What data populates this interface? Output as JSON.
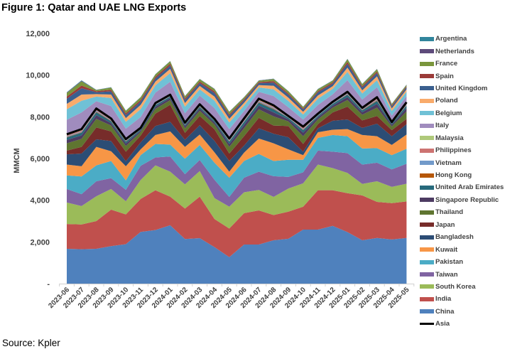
{
  "title": "Figure 1: Qatar and UAE LNG Exports",
  "source": "Source: Kpler",
  "chart_data": {
    "type": "area",
    "stacked": true,
    "title": "Figure 1: Qatar and UAE LNG Exports",
    "ylabel": "MMCM",
    "xlabel": "",
    "ylim": [
      0,
      12000
    ],
    "yticks": [
      0,
      2000,
      4000,
      6000,
      8000,
      10000,
      12000
    ],
    "ytick_labels": [
      "-",
      "2,000",
      "4,000",
      "6,000",
      "8,000",
      "10,000",
      "12,000"
    ],
    "grid": false,
    "legend_position": "right",
    "categories": [
      "2023-06",
      "2023-07",
      "2023-08",
      "2023-09",
      "2023-10",
      "2023-11",
      "2023-12",
      "2024-01",
      "2024-02",
      "2024-03",
      "2024-04",
      "2024-05",
      "2024-06",
      "2024-07",
      "2024-08",
      "2024-09",
      "2024-10",
      "2024-11",
      "2024-12",
      "2025-01",
      "2025-02",
      "2025-03",
      "2025-04",
      "2025-05"
    ],
    "series": [
      {
        "name": "China",
        "color": "#4F81BD",
        "values": [
          1670,
          1650,
          1670,
          1800,
          1890,
          2480,
          2570,
          2800,
          2140,
          2180,
          1750,
          1270,
          1875,
          1875,
          2080,
          2150,
          2590,
          2590,
          2770,
          2470,
          2080,
          2190,
          2120,
          2190
        ]
      },
      {
        "name": "India",
        "color": "#C0504D",
        "values": [
          1190,
          1190,
          1330,
          1750,
          1430,
          1580,
          1910,
          1370,
          1460,
          1990,
          1350,
          1370,
          1505,
          1635,
          1210,
          1300,
          1100,
          1890,
          1710,
          1870,
          2150,
          1730,
          1740,
          1750
        ]
      },
      {
        "name": "South Korea",
        "color": "#9BBB59",
        "values": [
          1030,
          880,
          1190,
          990,
          630,
          910,
          1190,
          1200,
          1160,
          1230,
          1000,
          1050,
          1000,
          980,
          870,
          1110,
          1120,
          1230,
          1060,
          970,
          550,
          990,
          780,
          850
        ]
      },
      {
        "name": "Taiwan",
        "color": "#8064A2",
        "values": [
          650,
          570,
          720,
          520,
          550,
          680,
          380,
          730,
          490,
          530,
          880,
          470,
          700,
          880,
          990,
          560,
          530,
          670,
          790,
          950,
          930,
          890,
          840,
          960
        ]
      },
      {
        "name": "Pakistan",
        "color": "#4BACC6",
        "values": [
          650,
          850,
          760,
          820,
          450,
          510,
          650,
          570,
          740,
          720,
          820,
          920,
          800,
          850,
          730,
          820,
          600,
          610,
          800,
          810,
          770,
          700,
          680,
          720
        ]
      },
      {
        "name": "Kuwait",
        "color": "#F79646",
        "values": [
          520,
          490,
          890,
          470,
          680,
          280,
          430,
          630,
          570,
          500,
          500,
          290,
          400,
          740,
          850,
          500,
          220,
          270,
          250,
          340,
          650,
          570,
          490,
          680
        ]
      },
      {
        "name": "Bangladesh",
        "color": "#2C4D75",
        "values": [
          490,
          610,
          360,
          490,
          240,
          330,
          430,
          460,
          340,
          450,
          550,
          510,
          340,
          490,
          460,
          580,
          170,
          190,
          430,
          460,
          340,
          600,
          420,
          500
        ]
      },
      {
        "name": "Japan",
        "color": "#772C2A",
        "values": [
          180,
          320,
          570,
          460,
          460,
          330,
          590,
          820,
          330,
          440,
          550,
          360,
          450,
          500,
          390,
          540,
          370,
          200,
          400,
          620,
          360,
          370,
          290,
          250
        ]
      },
      {
        "name": "Thailand",
        "color": "#5F7530",
        "values": [
          350,
          380,
          410,
          280,
          270,
          170,
          230,
          220,
          220,
          250,
          230,
          320,
          380,
          410,
          440,
          220,
          370,
          230,
          230,
          320,
          270,
          400,
          180,
          360
        ]
      },
      {
        "name": "Singapore Republic",
        "color": "#4D3B62",
        "values": [
          160,
          170,
          180,
          120,
          120,
          70,
          100,
          100,
          100,
          110,
          100,
          140,
          170,
          180,
          190,
          100,
          170,
          100,
          100,
          140,
          120,
          180,
          80,
          160
        ]
      },
      {
        "name": "United Arab Emirates",
        "color": "#276A7C",
        "values": [
          120,
          130,
          140,
          90,
          90,
          60,
          80,
          70,
          70,
          80,
          80,
          110,
          130,
          140,
          150,
          70,
          120,
          70,
          80,
          110,
          90,
          140,
          60,
          120
        ]
      },
      {
        "name": "Hong Kong",
        "color": "#B65708",
        "values": [
          20,
          20,
          30,
          20,
          20,
          10,
          10,
          10,
          10,
          20,
          10,
          20,
          20,
          30,
          30,
          10,
          20,
          10,
          10,
          20,
          20,
          30,
          10,
          20
        ]
      },
      {
        "name": "Vietnam",
        "color": "#729ACA",
        "values": [
          40,
          40,
          50,
          30,
          30,
          20,
          30,
          20,
          30,
          30,
          20,
          40,
          40,
          50,
          50,
          20,
          40,
          30,
          30,
          40,
          30,
          40,
          20,
          40
        ]
      },
      {
        "name": "Philippines",
        "color": "#CD7371",
        "values": [
          40,
          50,
          40,
          40,
          30,
          20,
          30,
          30,
          30,
          30,
          30,
          40,
          50,
          40,
          50,
          30,
          50,
          30,
          30,
          40,
          30,
          50,
          20,
          40
        ]
      },
      {
        "name": "Malaysia",
        "color": "#AFC97A",
        "values": [
          50,
          60,
          60,
          40,
          40,
          20,
          30,
          30,
          30,
          40,
          30,
          50,
          60,
          70,
          60,
          30,
          60,
          30,
          30,
          40,
          40,
          60,
          20,
          60
        ]
      },
      {
        "name": "Italy",
        "color": "#A08CBE",
        "values": [
          700,
          800,
          350,
          600,
          500,
          520,
          500,
          620,
          450,
          420,
          520,
          450,
          360,
          330,
          450,
          420,
          340,
          420,
          360,
          560,
          400,
          480,
          310,
          300
        ]
      },
      {
        "name": "Belgium",
        "color": "#70C1D6",
        "values": [
          500,
          560,
          220,
          380,
          330,
          380,
          350,
          420,
          320,
          300,
          360,
          320,
          260,
          210,
          320,
          300,
          240,
          300,
          260,
          400,
          290,
          340,
          220,
          210
        ]
      },
      {
        "name": "Poland",
        "color": "#F9AB6B",
        "values": [
          260,
          300,
          120,
          170,
          180,
          200,
          180,
          200,
          170,
          160,
          190,
          170,
          130,
          110,
          170,
          160,
          130,
          150,
          130,
          200,
          150,
          180,
          120,
          110
        ]
      },
      {
        "name": "United Kingdom",
        "color": "#3A5F8F",
        "values": [
          250,
          300,
          90,
          150,
          150,
          160,
          150,
          160,
          150,
          140,
          170,
          150,
          120,
          100,
          150,
          140,
          110,
          150,
          120,
          180,
          130,
          160,
          100,
          100
        ]
      },
      {
        "name": "Spain",
        "color": "#9B3B38",
        "values": [
          100,
          130,
          50,
          80,
          80,
          80,
          80,
          90,
          70,
          70,
          80,
          70,
          60,
          50,
          70,
          60,
          50,
          60,
          60,
          90,
          70,
          70,
          50,
          50
        ]
      },
      {
        "name": "France",
        "color": "#7A963C",
        "values": [
          170,
          200,
          50,
          100,
          110,
          120,
          110,
          110,
          100,
          110,
          110,
          110,
          80,
          60,
          100,
          100,
          70,
          90,
          80,
          130,
          90,
          110,
          60,
          60
        ]
      },
      {
        "name": "Netherlands",
        "color": "#5E4B7B",
        "values": [
          20,
          25,
          10,
          10,
          10,
          10,
          10,
          10,
          10,
          10,
          10,
          10,
          10,
          10,
          10,
          10,
          10,
          10,
          10,
          10,
          10,
          10,
          10,
          10
        ]
      },
      {
        "name": "Argentina",
        "color": "#31859C",
        "values": [
          20,
          25,
          10,
          10,
          10,
          10,
          10,
          10,
          10,
          10,
          10,
          10,
          10,
          10,
          10,
          10,
          10,
          10,
          10,
          10,
          10,
          10,
          10,
          10
        ]
      }
    ],
    "line_series": {
      "name": "Asia",
      "color": "#000000",
      "values": [
        7160,
        7410,
        8400,
        7920,
        6930,
        7470,
        8660,
        9060,
        7720,
        8600,
        7900,
        6960,
        7920,
        8870,
        8550,
        8040,
        7530,
        8150,
        8720,
        9200,
        8430,
        8940,
        7750,
        8700
      ]
    },
    "legend_order": [
      "Argentina",
      "Netherlands",
      "France",
      "Spain",
      "United Kingdom",
      "Poland",
      "Belgium",
      "Italy",
      "Malaysia",
      "Philippines",
      "Vietnam",
      "Hong Kong",
      "United Arab Emirates",
      "Singapore Republic",
      "Thailand",
      "Japan",
      "Bangladesh",
      "Kuwait",
      "Pakistan",
      "Taiwan",
      "South Korea",
      "India",
      "China",
      "Asia"
    ]
  }
}
